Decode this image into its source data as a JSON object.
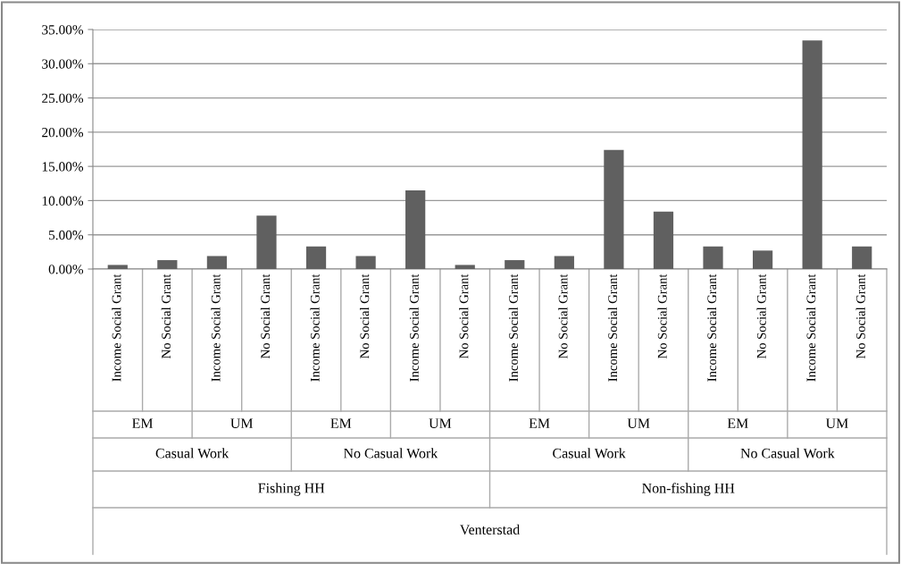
{
  "chart_data": {
    "type": "bar",
    "categories": [
      "Income Social Grant",
      "No Social Grant",
      "Income Social Grant",
      "No Social Grant",
      "Income Social Grant",
      "No Social Grant",
      "Income Social Grant",
      "No Social Grant",
      "Income Social Grant",
      "No Social Grant",
      "Income Social Grant",
      "No Social Grant",
      "Income Social Grant",
      "No Social Grant",
      "Income Social Grant",
      "No Social Grant"
    ],
    "values": [
      0.6,
      1.3,
      1.9,
      7.8,
      3.3,
      1.9,
      11.5,
      0.6,
      1.3,
      1.9,
      17.4,
      8.4,
      3.3,
      2.7,
      33.4,
      3.3
    ],
    "color": "#606060",
    "ylim": [
      0,
      35
    ],
    "yticks": [
      {
        "value": 0,
        "label": "0.00%"
      },
      {
        "value": 5,
        "label": "5.00%"
      },
      {
        "value": 10,
        "label": "10.00%"
      },
      {
        "value": 15,
        "label": "15.00%"
      },
      {
        "value": 20,
        "label": "20.00%"
      },
      {
        "value": 25,
        "label": "25.00%"
      },
      {
        "value": 30,
        "label": "30.00%"
      },
      {
        "value": 35,
        "label": "35.00%"
      }
    ],
    "grid": "y",
    "annotations": [
      "EM",
      "UM",
      "EM",
      "UM",
      "EM",
      "UM",
      "EM",
      "UM",
      "Casual Work",
      "No Casual Work",
      "Casual Work",
      "No Casual Work",
      "Fishing HH",
      "Non-fishing HH",
      "Venterstad"
    ]
  }
}
